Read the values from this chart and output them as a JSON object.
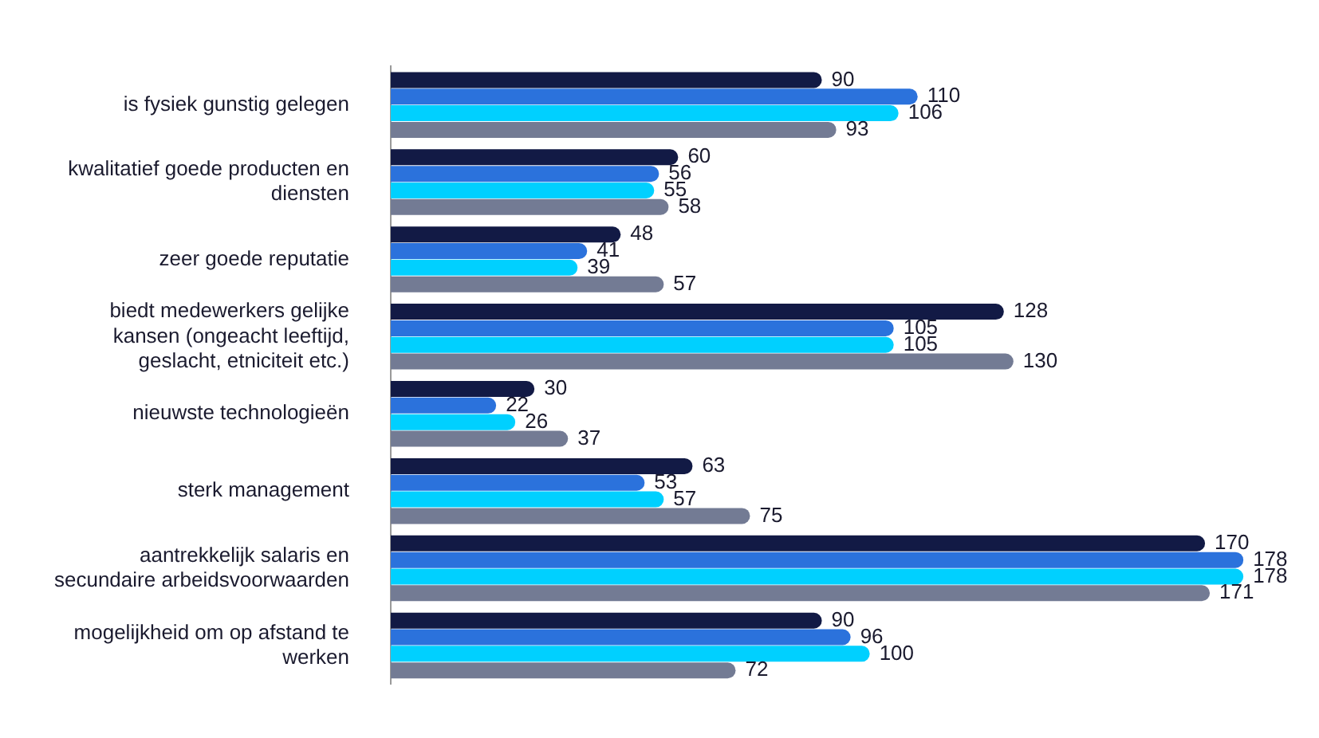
{
  "chart_data": {
    "type": "bar",
    "orientation": "horizontal",
    "categories": [
      "is fysiek gunstig gelegen",
      "kwalitatief goede producten en diensten",
      "zeer goede reputatie",
      "biedt medewerkers gelijke kansen (ongeacht leeftijd, geslacht, etniciteit etc.)",
      "nieuwste technologieën",
      "sterk management",
      "aantrekkelijk salaris en secundaire arbeidsvoorwaarden",
      "mogelijkheid om op afstand te werken"
    ],
    "series": [
      {
        "color": "#121a45",
        "values": [
          90,
          60,
          48,
          128,
          30,
          63,
          170,
          90
        ]
      },
      {
        "color": "#2b72dc",
        "values": [
          110,
          56,
          41,
          105,
          22,
          53,
          178,
          96
        ]
      },
      {
        "color": "#00d0ff",
        "values": [
          106,
          55,
          39,
          105,
          26,
          57,
          178,
          100
        ]
      },
      {
        "color": "#737b94",
        "values": [
          93,
          58,
          57,
          130,
          37,
          75,
          171,
          72
        ]
      }
    ],
    "data_labels": true,
    "legend": false,
    "tick_labels": "y"
  }
}
